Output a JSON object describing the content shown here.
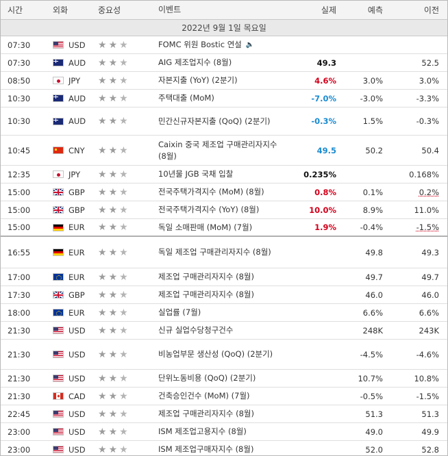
{
  "header": {
    "time": "시간",
    "currency": "외화",
    "importance": "중요성",
    "event": "이벤트",
    "actual": "실제",
    "forecast": "예측",
    "previous": "이전"
  },
  "date_label": "2022년 9월 1일 목요일",
  "colors": {
    "actual_up": "#d3001b",
    "actual_down": "#1a8bd0",
    "star": "#9c9c9c"
  },
  "rows": [
    {
      "time": "07:30",
      "flag": "us-flag-icon",
      "cur": "USD",
      "stars": 2,
      "event": "FOMC 위원 Bostic 연설",
      "speech": true,
      "actual": "",
      "ac": "",
      "forecast": "",
      "previous": "",
      "pc": "",
      "h": 26
    },
    {
      "time": "07:30",
      "flag": "au-flag-icon",
      "cur": "AUD",
      "stars": 2,
      "event": "AIG 제조업지수 (8월)",
      "actual": "49.3",
      "ac": "black",
      "forecast": "",
      "previous": "52.5",
      "pc": "",
      "h": 26
    },
    {
      "time": "08:50",
      "flag": "jp-flag-icon",
      "cur": "JPY",
      "stars": 2,
      "event": "자본지출 (YoY) (2분기)",
      "actual": "4.6%",
      "ac": "red",
      "forecast": "3.0%",
      "previous": "3.0%",
      "pc": "",
      "h": 26
    },
    {
      "time": "10:30",
      "flag": "au-flag-icon",
      "cur": "AUD",
      "stars": 2,
      "event": "주택대출 (MoM)",
      "actual": "-7.0%",
      "ac": "blue",
      "forecast": "-3.0%",
      "previous": "-3.3%",
      "pc": "",
      "h": 26
    },
    {
      "time": "10:30",
      "flag": "au-flag-icon",
      "cur": "AUD",
      "stars": 2,
      "event": "민간신규자본지출 (QoQ) (2분기)",
      "actual": "-0.3%",
      "ac": "blue",
      "forecast": "1.5%",
      "previous": "-0.3%",
      "pc": "",
      "h": 41
    },
    {
      "time": "10:45",
      "flag": "cn-flag-icon",
      "cur": "CNY",
      "stars": 2,
      "event": "Caixin 중국 제조업 구매관리자지수 (8월)",
      "actual": "49.5",
      "ac": "blue",
      "forecast": "50.2",
      "previous": "50.4",
      "pc": "",
      "h": 44
    },
    {
      "time": "12:35",
      "flag": "jp-flag-icon",
      "cur": "JPY",
      "stars": 2,
      "event": "10년물 JGB 국채 입찰",
      "actual": "0.235%",
      "ac": "black",
      "forecast": "",
      "previous": "0.168%",
      "pc": "",
      "h": 26
    },
    {
      "time": "15:00",
      "flag": "gb-flag-icon",
      "cur": "GBP",
      "stars": 2,
      "event": "전국주택가격지수 (MoM) (8월)",
      "actual": "0.8%",
      "ac": "red",
      "forecast": "0.1%",
      "previous": "0.2%",
      "pc": "under",
      "h": 26
    },
    {
      "time": "15:00",
      "flag": "gb-flag-icon",
      "cur": "GBP",
      "stars": 2,
      "event": "전국주택가격지수 (YoY) (8월)",
      "actual": "10.0%",
      "ac": "red",
      "forecast": "8.9%",
      "previous": "11.0%",
      "pc": "",
      "h": 26
    },
    {
      "time": "15:00",
      "flag": "de-flag-icon",
      "cur": "EUR",
      "stars": 2,
      "event": "독일 소매판매 (MoM) (7월)",
      "actual": "1.9%",
      "ac": "red",
      "forecast": "-0.4%",
      "previous": "-1.5%",
      "pc": "under",
      "h": 26,
      "sep": true
    },
    {
      "time": "16:55",
      "flag": "de-flag-icon",
      "cur": "EUR",
      "stars": 2,
      "event": "독일 제조업 구매관리자지수 (8월)",
      "actual": "",
      "ac": "",
      "forecast": "49.8",
      "previous": "49.3",
      "pc": "",
      "h": 46
    },
    {
      "time": "17:00",
      "flag": "eu-flag-icon",
      "cur": "EUR",
      "stars": 2,
      "event": "제조업 구매관리자지수 (8월)",
      "actual": "",
      "ac": "",
      "forecast": "49.7",
      "previous": "49.7",
      "pc": "",
      "h": 26
    },
    {
      "time": "17:30",
      "flag": "gb-flag-icon",
      "cur": "GBP",
      "stars": 2,
      "event": "제조업 구매관리자지수 (8월)",
      "actual": "",
      "ac": "",
      "forecast": "46.0",
      "previous": "46.0",
      "pc": "",
      "h": 26
    },
    {
      "time": "18:00",
      "flag": "eu-flag-icon",
      "cur": "EUR",
      "stars": 2,
      "event": "실업률 (7월)",
      "actual": "",
      "ac": "",
      "forecast": "6.6%",
      "previous": "6.6%",
      "pc": "",
      "h": 26
    },
    {
      "time": "21:30",
      "flag": "us-flag-icon",
      "cur": "USD",
      "stars": 2,
      "event": "신규 실업수당청구건수",
      "actual": "",
      "ac": "",
      "forecast": "248K",
      "previous": "243K",
      "pc": "",
      "h": 26
    },
    {
      "time": "21:30",
      "flag": "us-flag-icon",
      "cur": "USD",
      "stars": 2,
      "event": "비농업부문 생산성 (QoQ) (2분기)",
      "actual": "",
      "ac": "",
      "forecast": "-4.5%",
      "previous": "-4.6%",
      "pc": "",
      "h": 44
    },
    {
      "time": "21:30",
      "flag": "us-flag-icon",
      "cur": "USD",
      "stars": 2,
      "event": "단위노동비용 (QoQ) (2분기)",
      "actual": "",
      "ac": "",
      "forecast": "10.7%",
      "previous": "10.8%",
      "pc": "",
      "h": 26
    },
    {
      "time": "21:30",
      "flag": "ca-flag-icon",
      "cur": "CAD",
      "stars": 2,
      "event": "건축승인건수 (MoM) (7월)",
      "actual": "",
      "ac": "",
      "forecast": "-0.5%",
      "previous": "-1.5%",
      "pc": "",
      "h": 26
    },
    {
      "time": "22:45",
      "flag": "us-flag-icon",
      "cur": "USD",
      "stars": 2,
      "event": "제조업 구매관리자지수 (8월)",
      "actual": "",
      "ac": "",
      "forecast": "51.3",
      "previous": "51.3",
      "pc": "",
      "h": 26
    },
    {
      "time": "23:00",
      "flag": "us-flag-icon",
      "cur": "USD",
      "stars": 2,
      "event": "ISM 제조업고용지수 (8월)",
      "actual": "",
      "ac": "",
      "forecast": "49.0",
      "previous": "49.9",
      "pc": "",
      "h": 26
    },
    {
      "time": "23:00",
      "flag": "us-flag-icon",
      "cur": "USD",
      "stars": 2,
      "event": "ISM 제조업구매자지수 (8월)",
      "actual": "",
      "ac": "",
      "forecast": "52.0",
      "previous": "52.8",
      "pc": "",
      "h": 26
    }
  ]
}
